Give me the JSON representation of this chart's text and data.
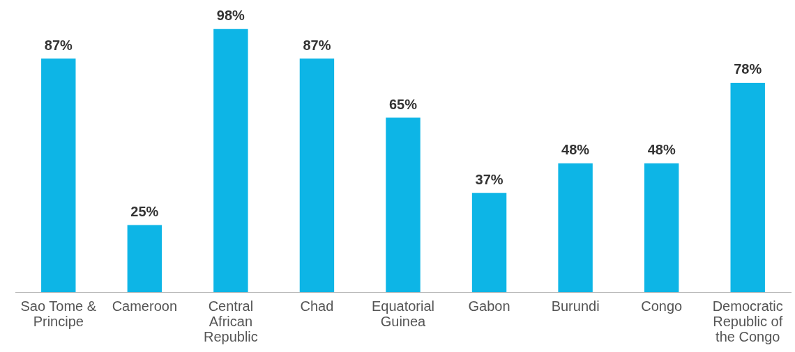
{
  "chart_data": {
    "type": "bar",
    "categories": [
      "Sao Tome & Principe",
      "Cameroon",
      "Central African Republic",
      "Chad",
      "Equatorial Guinea",
      "Gabon",
      "Burundi",
      "Congo",
      "Democratic Republic of the Congo"
    ],
    "values": [
      87,
      25,
      98,
      87,
      65,
      37,
      48,
      48,
      78
    ],
    "value_labels": [
      "87%",
      "25%",
      "98%",
      "87%",
      "65%",
      "37%",
      "48%",
      "48%",
      "78%"
    ],
    "color": "#0db5e6",
    "grid": false,
    "legend": false,
    "tick_labels": "x"
  }
}
